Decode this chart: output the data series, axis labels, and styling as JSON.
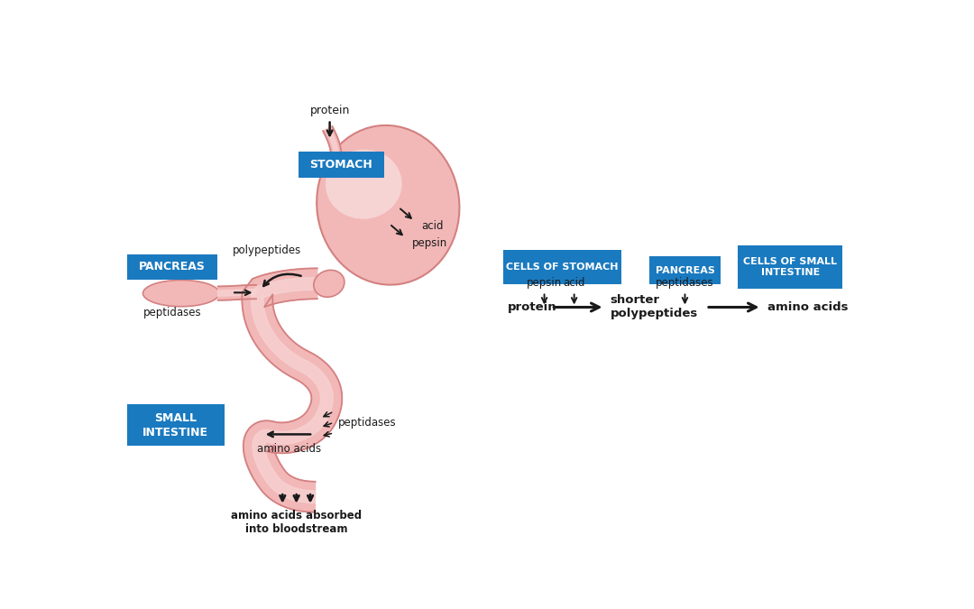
{
  "bg_color": "#ffffff",
  "stomach_fill": "#f2b8b8",
  "stomach_highlight": "#f7d4d4",
  "stomach_edge": "#d48080",
  "tube_fill": "#f2b8b8",
  "tube_highlight": "#f7d4d4",
  "tube_edge": "#d48080",
  "blue": "#1a7abf",
  "black": "#1a1a1a",
  "labels_left": {
    "protein": "protein",
    "stomach": "STOMACH",
    "pancreas": "PANCREAS",
    "small_intestine": "SMALL\nINTESTINE",
    "polypeptides": "polypeptides",
    "peptidases_pan": "peptidases",
    "acid": "acid",
    "pepsin": "pepsin",
    "peptidases_si": "peptidases",
    "amino_acids": "amino acids",
    "absorbed": "amino acids absorbed\ninto bloodstream"
  },
  "labels_right": {
    "cells_stomach": "CELLS OF STOMACH",
    "pancreas": "PANCREAS",
    "cells_small": "CELLS OF SMALL\nINTESTINE",
    "pepsin": "pepsin",
    "acid": "acid",
    "peptidases": "peptidases",
    "protein": "protein",
    "shorter_poly": "shorter\npolypeptides",
    "amino_acids": "amino acids"
  }
}
